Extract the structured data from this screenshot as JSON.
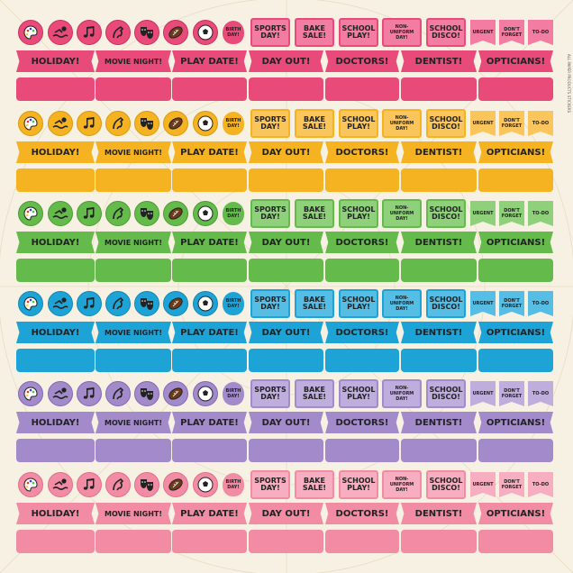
{
  "bands": [
    {
      "name": "pink",
      "main": "#e84a7a",
      "light": "#f27ca2",
      "dark": "#c7325e"
    },
    {
      "name": "orange",
      "main": "#f5b321",
      "light": "#fac55a",
      "dark": "#d89912"
    },
    {
      "name": "green",
      "main": "#64bb4b",
      "light": "#8ed17a",
      "dark": "#4b9a35"
    },
    {
      "name": "blue",
      "main": "#1ea3d7",
      "light": "#56bde5",
      "dark": "#1586b3"
    },
    {
      "name": "purple",
      "main": "#a28acb",
      "light": "#bfadde",
      "dark": "#8368b3"
    },
    {
      "name": "rose",
      "main": "#f28ca4",
      "light": "#f6aec0",
      "dark": "#e06e8a"
    }
  ],
  "icons": [
    "palette-icon",
    "swimmer-icon",
    "music-notes-icon",
    "horse-icon",
    "theatre-masks-icon",
    "rugby-ball-icon",
    "football-icon"
  ],
  "bday_label": "BIRTH DAY!",
  "small_labels": [
    "SPORTS DAY!",
    "BAKE SALE!",
    "SCHOOL PLAY!",
    "NON- UNIFORM DAY!",
    "SCHOOL DISCO!"
  ],
  "flag_labels": [
    "URGENT",
    "DON'T FORGET",
    "TO-DO"
  ],
  "banner_labels": [
    "HOLIDAY!",
    "MOVIE NIGHT!",
    "PLAY DATE!",
    "DAY OUT!",
    "DOCTORS!",
    "DENTIST!",
    "OPTICIANS!"
  ],
  "side_text": "ALL PAPER PRODUCTS STICKERS"
}
